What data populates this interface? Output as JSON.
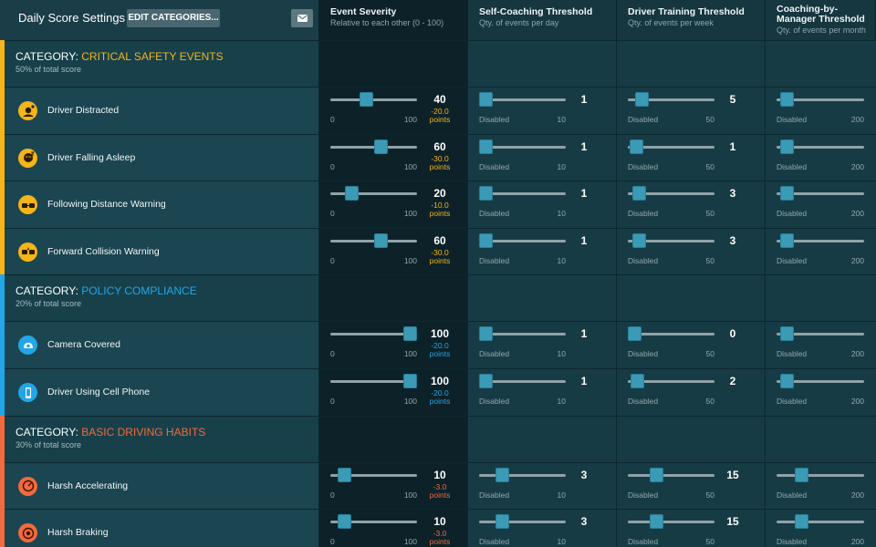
{
  "header": {
    "title": "Daily Score Settings",
    "edit_label": "EDIT CATEGORIES...",
    "mail_icon": "envelope-icon",
    "columns": [
      {
        "title": "Event Severity",
        "sub": "Relative to each other (0 - 100)"
      },
      {
        "title": "Self-Coaching Threshold",
        "sub": "Qty. of events per day"
      },
      {
        "title": "Driver Training Threshold",
        "sub": "Qty. of events per week"
      },
      {
        "title": "Coaching-by-Manager Threshold",
        "sub": "Qty. of events per month"
      }
    ]
  },
  "categories": [
    {
      "prefix": "CATEGORY: ",
      "name": "CRITICAL SAFETY EVENTS",
      "sub": "50% of total score",
      "color": "#f4b41a",
      "events": [
        {
          "label": "Driver Distracted",
          "icon": "distracted-driver-icon",
          "severity": 40,
          "points": "-20.0",
          "self": 1,
          "training": 5,
          "manager": null
        },
        {
          "label": "Driver Falling Asleep",
          "icon": "sleeping-driver-icon",
          "severity": 60,
          "points": "-30.0",
          "self": 1,
          "training": 1,
          "manager": null
        },
        {
          "label": "Following Distance Warning",
          "icon": "following-distance-icon",
          "severity": 20,
          "points": "-10.0",
          "self": 1,
          "training": 3,
          "manager": null
        },
        {
          "label": "Forward Collision Warning",
          "icon": "forward-collision-icon",
          "severity": 60,
          "points": "-30.0",
          "self": 1,
          "training": 3,
          "manager": null
        }
      ]
    },
    {
      "prefix": "CATEGORY: ",
      "name": "POLICY COMPLIANCE",
      "sub": "20% of total score",
      "color": "#23a6e8",
      "events": [
        {
          "label": "Camera Covered",
          "icon": "camera-covered-icon",
          "severity": 100,
          "points": "-20.0",
          "self": 1,
          "training": 0,
          "manager": null
        },
        {
          "label": "Driver Using Cell Phone",
          "icon": "cell-phone-icon",
          "severity": 100,
          "points": "-20.0",
          "self": 1,
          "training": 2,
          "manager": null
        }
      ]
    },
    {
      "prefix": "CATEGORY: ",
      "name": "BASIC DRIVING HABITS",
      "sub": "30% of total score",
      "color": "#f26a3d",
      "events": [
        {
          "label": "Harsh Accelerating",
          "icon": "harsh-accelerating-icon",
          "severity": 10,
          "points": "-3.0",
          "self": 3,
          "training": 15,
          "manager": null
        },
        {
          "label": "Harsh Braking",
          "icon": "harsh-braking-icon",
          "severity": 10,
          "points": "-3.0",
          "self": 3,
          "training": 15,
          "manager": null
        }
      ]
    }
  ],
  "labels": {
    "points": "points",
    "disabled": "Disabled",
    "severity_min": "0",
    "severity_max": "100",
    "self_max": "10",
    "training_max": "50",
    "manager_max": "200",
    "manager_fraction": 0.05
  }
}
